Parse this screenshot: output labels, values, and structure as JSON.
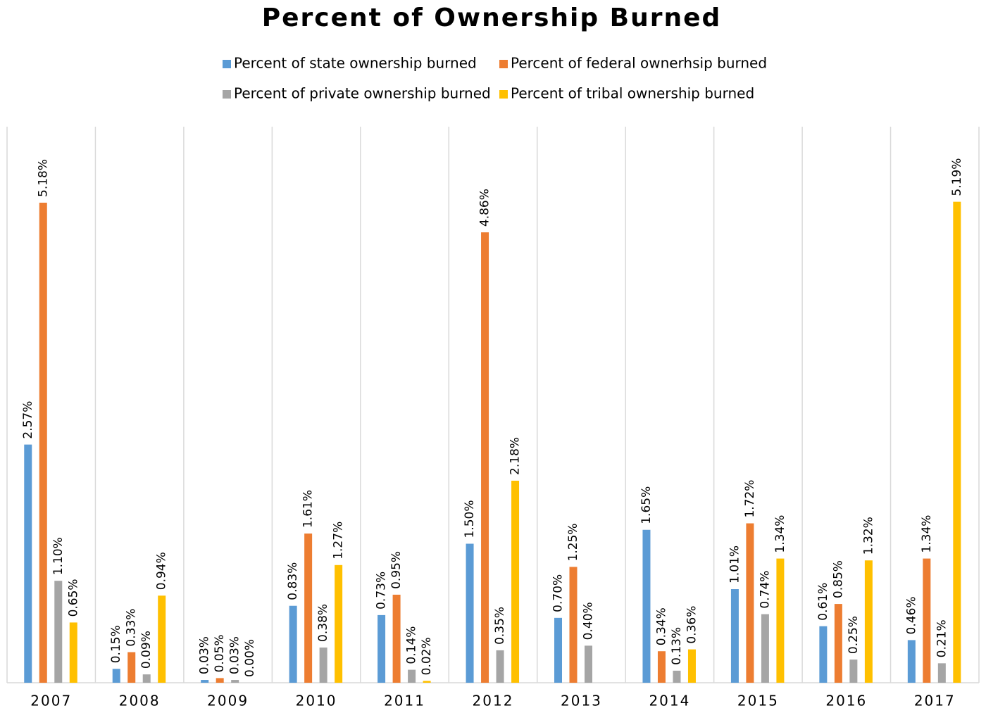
{
  "chart_data": {
    "type": "bar",
    "title": "Percent of Ownership Burned",
    "categories": [
      "2007",
      "2008",
      "2009",
      "2010",
      "2011",
      "2012",
      "2013",
      "2014",
      "2015",
      "2016",
      "2017"
    ],
    "series": [
      {
        "name": "Percent of state ownership burned",
        "color": "#5b9bd5",
        "values": [
          2.57,
          0.15,
          0.03,
          0.83,
          0.73,
          1.5,
          0.7,
          1.65,
          1.01,
          0.61,
          0.46
        ],
        "value_labels": [
          "2.57%",
          "0.15%",
          "0.03%",
          "0.83%",
          "0.73%",
          "1.50%",
          "0.70%",
          "1.65%",
          "1.01%",
          "0.61%",
          "0.46%"
        ]
      },
      {
        "name": "Percent of federal ownerhsip burned",
        "color": "#ed7d31",
        "values": [
          5.18,
          0.33,
          0.05,
          1.61,
          0.95,
          4.86,
          1.25,
          0.34,
          1.72,
          0.85,
          1.34
        ],
        "value_labels": [
          "5.18%",
          "0.33%",
          "0.05%",
          "1.61%",
          "0.95%",
          "4.86%",
          "1.25%",
          "0.34%",
          "1.72%",
          "0.85%",
          "1.34%"
        ]
      },
      {
        "name": "Percent of private ownership burned",
        "color": "#a5a5a5",
        "values": [
          1.1,
          0.09,
          0.03,
          0.38,
          0.14,
          0.35,
          0.4,
          0.13,
          0.74,
          0.25,
          0.21
        ],
        "value_labels": [
          "1.10%",
          "0.09%",
          "0.03%",
          "0.38%",
          "0.14%",
          "0.35%",
          "0.40%",
          "0.13%",
          "0.74%",
          "0.25%",
          "0.21%"
        ]
      },
      {
        "name": "Percent of tribal ownership burned",
        "color": "#ffc000",
        "values": [
          0.65,
          0.94,
          0.0,
          1.27,
          0.02,
          2.18,
          null,
          0.36,
          1.34,
          1.32,
          5.19
        ],
        "value_labels": [
          "0.65%",
          "0.94%",
          "0.00%",
          "1.27%",
          "0.02%",
          "2.18%",
          null,
          "0.36%",
          "1.34%",
          "1.32%",
          "5.19%"
        ]
      }
    ],
    "ylim": [
      0,
      6
    ],
    "legend": "top",
    "grid": "vertical"
  }
}
